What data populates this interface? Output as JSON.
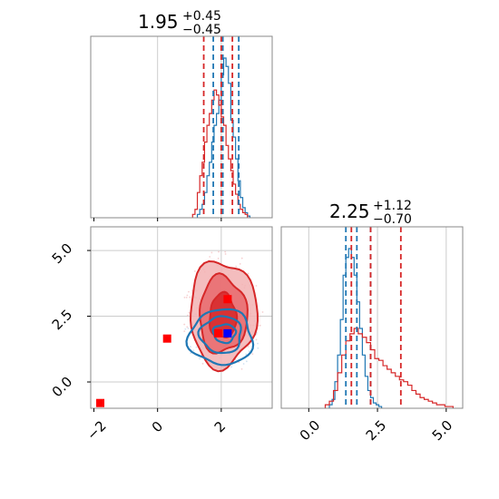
{
  "colors": {
    "blue": "#1f77b4",
    "red": "#d62728",
    "grid": "#cccccc",
    "spine": "#888888",
    "marker_blue": "#0000ff",
    "marker_red": "#ff0000",
    "fill_dark": "#d62728",
    "fill_mid": "#e8696c",
    "fill_light": "#f2b2b3"
  },
  "chart_data": [
    {
      "type": "histogram",
      "panel": "param-1-marginal",
      "title": {
        "value": "1.95",
        "plus": "+0.45",
        "minus": "−0.45"
      },
      "xlim": [
        -2.1,
        3.6
      ],
      "grid": true,
      "series": [
        {
          "color": "blue",
          "quantiles": [
            1.75,
            2.05,
            2.55
          ],
          "x0": 1.25,
          "bin_width": 0.075,
          "values": [
            0.02,
            0.05,
            0.08,
            0.15,
            0.25,
            0.33,
            0.45,
            0.55,
            0.62,
            0.7,
            0.85,
            0.95,
            0.9,
            0.8,
            0.58,
            0.48,
            0.35,
            0.22,
            0.12,
            0.06,
            0.03,
            0.01
          ]
        },
        {
          "color": "red",
          "quantiles": [
            1.45,
            2.0,
            2.35
          ],
          "x0": 1.1,
          "bin_width": 0.075,
          "values": [
            0.02,
            0.05,
            0.15,
            0.25,
            0.33,
            0.45,
            0.55,
            0.62,
            0.7,
            0.76,
            0.73,
            0.67,
            0.6,
            0.55,
            0.43,
            0.35,
            0.28,
            0.2,
            0.14,
            0.08,
            0.05,
            0.03,
            0.02
          ]
        }
      ]
    },
    {
      "type": "histogram",
      "panel": "param-2-marginal",
      "title": {
        "value": "2.25",
        "plus": "+1.12",
        "minus": "−0.70"
      },
      "xlim": [
        -1.0,
        5.6
      ],
      "x_ticks": [
        "0.0",
        "2.5",
        "5.0"
      ],
      "grid": true,
      "series": [
        {
          "color": "blue",
          "quantiles": [
            1.35,
            1.75,
            2.25
          ],
          "x0": 0.75,
          "bin_width": 0.1,
          "values": [
            0.02,
            0.05,
            0.15,
            0.3,
            0.5,
            0.75,
            0.85,
            0.9,
            0.85,
            0.75,
            0.6,
            0.45,
            0.3,
            0.18,
            0.1,
            0.06,
            0.03,
            0.02,
            0.01
          ]
        },
        {
          "color": "red",
          "quantiles": [
            1.55,
            2.25,
            3.35
          ],
          "x0": 0.6,
          "bin_width": 0.15,
          "values": [
            0.02,
            0.04,
            0.1,
            0.2,
            0.3,
            0.38,
            0.42,
            0.45,
            0.42,
            0.4,
            0.37,
            0.33,
            0.28,
            0.27,
            0.24,
            0.22,
            0.2,
            0.18,
            0.16,
            0.15,
            0.13,
            0.1,
            0.08,
            0.06,
            0.05,
            0.04,
            0.03,
            0.02,
            0.02,
            0.01,
            0.01
          ]
        }
      ]
    },
    {
      "type": "contour",
      "panel": "joint-2d",
      "xlim": [
        -2.1,
        3.6
      ],
      "ylim": [
        -1.0,
        5.9
      ],
      "x_ticks": [
        "−2",
        "0",
        "2"
      ],
      "y_ticks": [
        "0.0",
        "2.5",
        "5.0"
      ],
      "grid": true,
      "red_contours": [
        {
          "level": "outer",
          "cx": 2.05,
          "cy": 2.6,
          "rx": 1.05,
          "ry": 2.0
        },
        {
          "level": "middle",
          "cx": 2.05,
          "cy": 2.55,
          "rx": 0.75,
          "ry": 1.45
        },
        {
          "level": "inner",
          "cx": 2.05,
          "cy": 2.5,
          "rx": 0.42,
          "ry": 0.85
        }
      ],
      "blue_contours": [
        {
          "level": "outer",
          "cx": 2.0,
          "cy": 1.7,
          "rx": 1.0,
          "ry": 1.05
        },
        {
          "level": "middle",
          "cx": 2.0,
          "cy": 1.8,
          "rx": 0.65,
          "ry": 0.7
        },
        {
          "level": "inner",
          "cx": 2.1,
          "cy": 1.85,
          "rx": 0.35,
          "ry": 0.35
        }
      ],
      "markers": [
        {
          "color": "marker_red",
          "x": -1.8,
          "y": -0.8
        },
        {
          "color": "marker_red",
          "x": 0.3,
          "y": 1.65
        },
        {
          "color": "marker_red",
          "x": 2.2,
          "y": 3.15
        },
        {
          "color": "marker_red",
          "x": 1.9,
          "y": 1.85
        },
        {
          "color": "marker_blue",
          "x": 2.2,
          "y": 1.85
        }
      ]
    }
  ]
}
